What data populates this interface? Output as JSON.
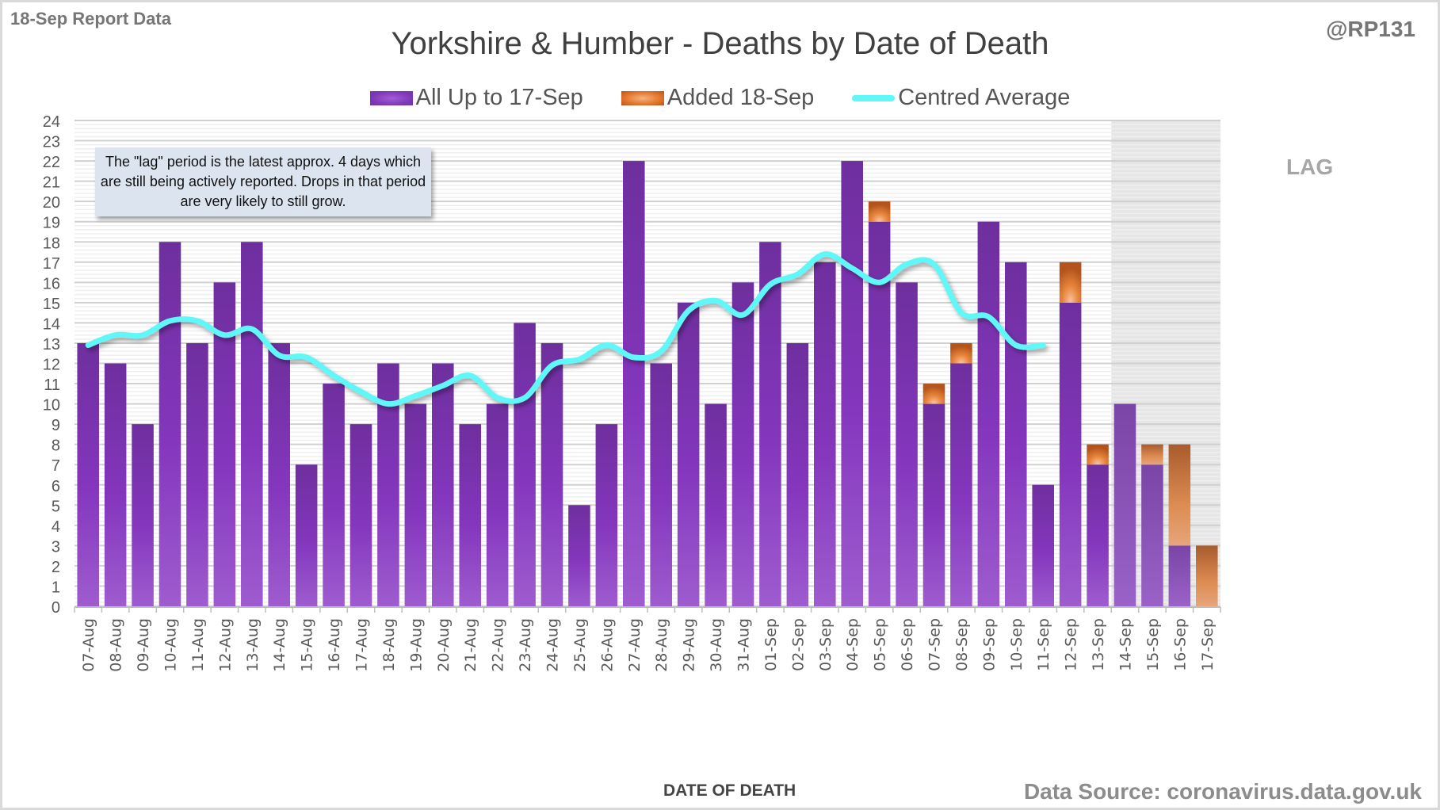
{
  "header": {
    "report_label": "18-Sep Report Data",
    "handle": "@RP131"
  },
  "note": {
    "text": "The \"lag\" period is the latest approx. 4 days which are still being actively reported. Drops in that period are very likely to still grow."
  },
  "lag_label": "LAG",
  "source": "Data Source: coronavirus.data.gov.uk",
  "colors": {
    "purple": "#7a35b5",
    "orange": "#e2752a",
    "average_line": "#5ff7f7",
    "lag_shade": "#e6e6e6"
  },
  "chart_data": {
    "type": "bar",
    "stacked": true,
    "title": "Yorkshire & Humber - Deaths by Date of Death",
    "xlabel": "DATE OF DEATH",
    "ylabel": "",
    "ylim": [
      0,
      24
    ],
    "yticks": [
      0,
      1,
      2,
      3,
      4,
      5,
      6,
      7,
      8,
      9,
      10,
      11,
      12,
      13,
      14,
      15,
      16,
      17,
      18,
      19,
      20,
      21,
      22,
      23,
      24
    ],
    "grid": true,
    "legend_position": "top-center",
    "categories": [
      "07-Aug",
      "08-Aug",
      "09-Aug",
      "10-Aug",
      "11-Aug",
      "12-Aug",
      "13-Aug",
      "14-Aug",
      "15-Aug",
      "16-Aug",
      "17-Aug",
      "18-Aug",
      "19-Aug",
      "20-Aug",
      "21-Aug",
      "22-Aug",
      "23-Aug",
      "24-Aug",
      "25-Aug",
      "26-Aug",
      "27-Aug",
      "28-Aug",
      "29-Aug",
      "30-Aug",
      "31-Aug",
      "01-Sep",
      "02-Sep",
      "03-Sep",
      "04-Sep",
      "05-Sep",
      "06-Sep",
      "07-Sep",
      "08-Sep",
      "09-Sep",
      "10-Sep",
      "11-Sep",
      "12-Sep",
      "13-Sep",
      "14-Sep",
      "15-Sep",
      "16-Sep",
      "17-Sep"
    ],
    "lag_start_category": "14-Sep",
    "series": [
      {
        "name": "All Up to 17-Sep",
        "kind": "bar",
        "values": [
          13,
          12,
          9,
          18,
          13,
          16,
          18,
          13,
          7,
          11,
          9,
          12,
          10,
          12,
          9,
          10,
          14,
          13,
          5,
          9,
          22,
          12,
          15,
          10,
          16,
          18,
          13,
          17,
          22,
          19,
          16,
          10,
          12,
          19,
          17,
          6,
          15,
          7,
          10,
          7,
          3,
          0
        ]
      },
      {
        "name": "Added 18-Sep",
        "kind": "bar",
        "values": [
          0,
          0,
          0,
          0,
          0,
          0,
          0,
          0,
          0,
          0,
          0,
          0,
          0,
          0,
          0,
          0,
          0,
          0,
          0,
          0,
          0,
          0,
          0,
          0,
          0,
          0,
          0,
          0,
          0,
          1,
          0,
          1,
          1,
          0,
          0,
          0,
          2,
          1,
          0,
          1,
          5,
          3
        ]
      },
      {
        "name": "Centred Average",
        "kind": "line",
        "values": [
          12.9,
          13.4,
          13.4,
          14.1,
          14.1,
          13.4,
          13.7,
          12.4,
          12.3,
          11.4,
          10.6,
          10.0,
          10.4,
          10.9,
          11.4,
          10.3,
          10.3,
          11.9,
          12.2,
          12.9,
          12.3,
          12.6,
          14.6,
          15.1,
          14.4,
          15.9,
          16.4,
          17.4,
          16.7,
          16.0,
          16.9,
          16.9,
          14.5,
          14.3,
          12.9,
          12.9,
          null,
          null,
          null,
          null,
          null,
          null
        ]
      }
    ]
  }
}
